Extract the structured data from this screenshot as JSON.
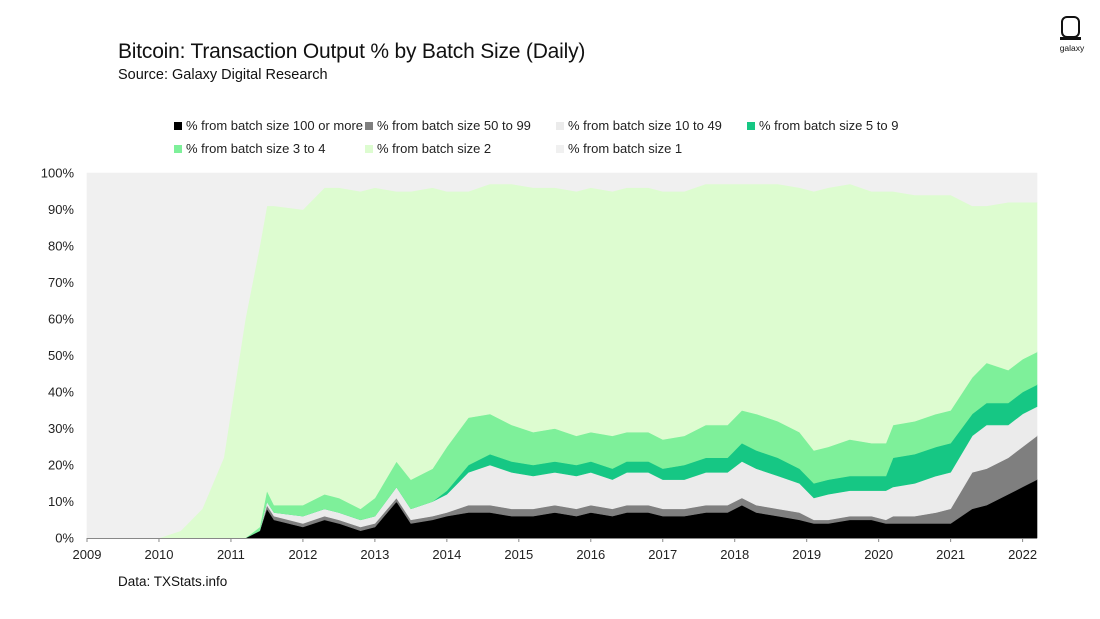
{
  "header": {
    "title": "Bitcoin: Transaction Output % by Batch Size (Daily)",
    "subtitle": "Source: Galaxy Digital Research"
  },
  "logo": {
    "text": "galaxy",
    "icon": "galaxy-logo-icon"
  },
  "footer": {
    "source_note": "Data: TXStats.info"
  },
  "chart_data": {
    "type": "area",
    "stacked": true,
    "percent": true,
    "title": "Bitcoin: Transaction Output % by Batch Size (Daily)",
    "subtitle": "Source: Galaxy Digital Research",
    "xlim": [
      2009,
      2022.2
    ],
    "ylim": [
      0,
      100
    ],
    "x_ticks": [
      "2009",
      "2010",
      "2011",
      "2012",
      "2013",
      "2014",
      "2015",
      "2016",
      "2017",
      "2018",
      "2019",
      "2020",
      "2021",
      "2022"
    ],
    "y_ticks": [
      "0%",
      "10%",
      "20%",
      "30%",
      "40%",
      "50%",
      "60%",
      "70%",
      "80%",
      "90%",
      "100%"
    ],
    "legend_position": "top",
    "x": [
      2009.0,
      2010.0,
      2010.3,
      2010.6,
      2010.9,
      2011.2,
      2011.4,
      2011.5,
      2011.6,
      2012.0,
      2012.3,
      2012.5,
      2012.8,
      2013.0,
      2013.3,
      2013.5,
      2013.8,
      2014.0,
      2014.3,
      2014.6,
      2014.9,
      2015.2,
      2015.5,
      2015.8,
      2016.0,
      2016.3,
      2016.5,
      2016.8,
      2017.0,
      2017.3,
      2017.6,
      2017.9,
      2018.1,
      2018.3,
      2018.6,
      2018.9,
      2019.1,
      2019.3,
      2019.6,
      2019.9,
      2020.1,
      2020.2,
      2020.5,
      2020.8,
      2021.0,
      2021.3,
      2021.5,
      2021.8,
      2022.0,
      2022.2
    ],
    "series": [
      {
        "name": "% from batch size 100 or more",
        "color": "#000000",
        "values": [
          0,
          0,
          0,
          0,
          0,
          0,
          2,
          8,
          5,
          3,
          5,
          4,
          2,
          3,
          10,
          4,
          5,
          6,
          7,
          7,
          6,
          6,
          7,
          6,
          7,
          6,
          7,
          7,
          6,
          6,
          7,
          7,
          9,
          7,
          6,
          5,
          4,
          4,
          5,
          5,
          4,
          4,
          4,
          4,
          4,
          8,
          9,
          12,
          14,
          16
        ]
      },
      {
        "name": "% from batch size 50 to 99",
        "color": "#7f7f7f",
        "values": [
          0,
          0,
          0,
          0,
          0,
          0,
          0,
          1,
          1,
          1,
          1,
          1,
          1,
          1,
          1,
          1,
          1,
          1,
          2,
          2,
          2,
          2,
          2,
          2,
          2,
          2,
          2,
          2,
          2,
          2,
          2,
          2,
          2,
          2,
          2,
          2,
          1,
          1,
          1,
          1,
          1,
          2,
          2,
          3,
          4,
          10,
          10,
          10,
          11,
          12
        ]
      },
      {
        "name": "% from batch size 10 to 49",
        "color": "#ebebeb",
        "values": [
          0,
          0,
          0,
          0,
          0,
          0,
          0,
          1,
          1,
          2,
          2,
          2,
          2,
          2,
          3,
          3,
          4,
          5,
          9,
          11,
          10,
          9,
          9,
          9,
          9,
          8,
          9,
          9,
          8,
          8,
          9,
          9,
          10,
          10,
          9,
          8,
          6,
          7,
          7,
          7,
          8,
          8,
          9,
          10,
          10,
          10,
          12,
          9,
          9,
          8
        ]
      },
      {
        "name": "% from batch size 5 to 9",
        "color": "#16c784",
        "values": [
          0,
          0,
          0,
          0,
          0,
          0,
          0,
          0,
          0,
          0,
          0,
          0,
          0,
          0,
          0,
          0,
          0,
          1,
          2,
          3,
          3,
          3,
          3,
          3,
          3,
          3,
          3,
          3,
          3,
          4,
          4,
          4,
          5,
          5,
          5,
          4,
          4,
          4,
          4,
          4,
          4,
          8,
          8,
          8,
          8,
          6,
          6,
          6,
          6,
          6
        ]
      },
      {
        "name": "% from batch size 3 to 4",
        "color": "#7ef09a",
        "values": [
          0,
          0,
          0,
          0,
          0,
          0,
          1,
          3,
          2,
          3,
          4,
          4,
          3,
          5,
          7,
          8,
          9,
          12,
          13,
          11,
          10,
          9,
          9,
          8,
          8,
          9,
          8,
          8,
          8,
          8,
          9,
          9,
          9,
          10,
          10,
          10,
          9,
          9,
          10,
          9,
          9,
          9,
          9,
          9,
          9,
          10,
          11,
          9,
          9,
          9
        ]
      },
      {
        "name": "% from batch size 2",
        "color": "#ddfcd0",
        "values": [
          0,
          0,
          2,
          8,
          22,
          60,
          77,
          78,
          82,
          81,
          84,
          85,
          87,
          85,
          74,
          79,
          77,
          70,
          62,
          63,
          66,
          67,
          66,
          67,
          67,
          67,
          67,
          67,
          68,
          67,
          66,
          66,
          62,
          63,
          65,
          67,
          71,
          71,
          70,
          69,
          69,
          64,
          62,
          60,
          59,
          47,
          43,
          46,
          43,
          41
        ]
      },
      {
        "name": "% from batch size 1",
        "color": "#f0f0f0",
        "values": [
          100,
          100,
          98,
          92,
          78,
          40,
          20,
          9,
          9,
          10,
          4,
          4,
          5,
          4,
          5,
          5,
          4,
          5,
          5,
          3,
          3,
          4,
          4,
          5,
          4,
          5,
          4,
          4,
          5,
          5,
          3,
          3,
          3,
          3,
          3,
          4,
          5,
          4,
          3,
          5,
          5,
          5,
          6,
          6,
          6,
          9,
          9,
          8,
          8,
          8
        ]
      }
    ]
  }
}
